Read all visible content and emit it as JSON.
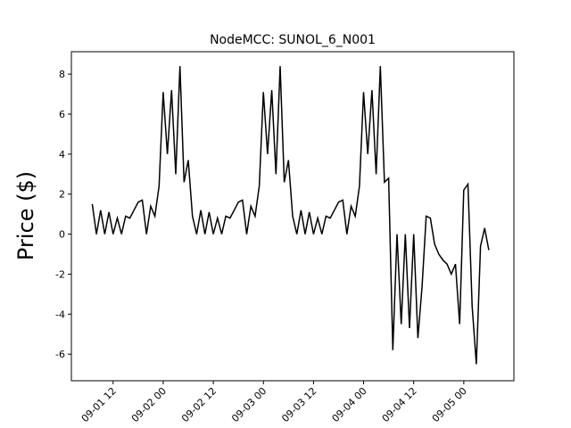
{
  "chart_data": {
    "type": "line",
    "title": "NodeMCC: SUNOL_6_N001",
    "y_label": "Price ($)",
    "x": [
      "09-01 07",
      "09-01 08",
      "09-01 09",
      "09-01 10",
      "09-01 11",
      "09-01 12",
      "09-01 13",
      "09-01 14",
      "09-01 15",
      "09-01 16",
      "09-01 17",
      "09-01 18",
      "09-01 19",
      "09-01 20",
      "09-01 21",
      "09-01 22",
      "09-01 23",
      "09-02 00",
      "09-02 01",
      "09-02 02",
      "09-02 03",
      "09-02 04",
      "09-02 05",
      "09-02 06",
      "09-02 07",
      "09-02 08",
      "09-02 09",
      "09-02 10",
      "09-02 11",
      "09-02 12",
      "09-02 13",
      "09-02 14",
      "09-02 15",
      "09-02 16",
      "09-02 17",
      "09-02 18",
      "09-02 19",
      "09-02 20",
      "09-02 21",
      "09-02 22",
      "09-02 23",
      "09-03 00",
      "09-03 01",
      "09-03 02",
      "09-03 03",
      "09-03 04",
      "09-03 05",
      "09-03 06",
      "09-03 07",
      "09-03 08",
      "09-03 09",
      "09-03 10",
      "09-03 11",
      "09-03 12",
      "09-03 13",
      "09-03 14",
      "09-03 15",
      "09-03 16",
      "09-03 17",
      "09-03 18",
      "09-03 19",
      "09-03 20",
      "09-03 21",
      "09-03 22",
      "09-03 23",
      "09-04 00",
      "09-04 01",
      "09-04 02",
      "09-04 03",
      "09-04 04",
      "09-04 05",
      "09-04 06",
      "09-04 07",
      "09-04 08",
      "09-04 09",
      "09-04 10",
      "09-04 11",
      "09-04 12",
      "09-04 13",
      "09-04 14",
      "09-04 15",
      "09-04 16",
      "09-04 17",
      "09-04 18",
      "09-04 19",
      "09-04 20",
      "09-04 21",
      "09-04 22",
      "09-04 23",
      "09-05 00",
      "09-05 01",
      "09-05 02",
      "09-05 03",
      "09-05 04",
      "09-05 05",
      "09-05 06"
    ],
    "series": [
      {
        "color": "#000000",
        "values": [
          1.5,
          0,
          1.2,
          0,
          1.1,
          0,
          0.8,
          0,
          0.9,
          0.8,
          1.2,
          1.6,
          1.7,
          0,
          1.4,
          0.9,
          2.4,
          7.1,
          4.0,
          7.2,
          3.0,
          8.4,
          2.6,
          3.7,
          0.9,
          0,
          1.2,
          0,
          1.1,
          0,
          0.8,
          0,
          0.9,
          0.8,
          1.2,
          1.6,
          1.7,
          0,
          1.4,
          0.9,
          2.4,
          7.1,
          4.0,
          7.2,
          3.0,
          8.4,
          2.6,
          3.7,
          0.9,
          0,
          1.2,
          0,
          1.1,
          0,
          0.8,
          0,
          0.9,
          0.8,
          1.2,
          1.6,
          1.7,
          0,
          1.4,
          0.9,
          2.4,
          7.1,
          4.0,
          7.2,
          3.0,
          8.4,
          2.6,
          2.8,
          -5.8,
          0,
          -4.5,
          0,
          -4.7,
          0,
          -5.2,
          -2.6,
          0.9,
          0.8,
          -0.5,
          -1.0,
          -1.3,
          -1.5,
          -2.0,
          -1.5,
          -4.5,
          2.2,
          2.5,
          -3.6,
          -6.5,
          -0.6,
          0.3,
          -0.8
        ]
      }
    ],
    "xlim": [
      "09-01 02",
      "09-05 12"
    ],
    "ylim": [
      -7.33,
      9.12
    ],
    "xticks": [
      "09-01 12",
      "09-02 00",
      "09-02 12",
      "09-03 00",
      "09-03 12",
      "09-04 00",
      "09-04 12",
      "09-05 00"
    ],
    "yticks": [
      -6,
      -4,
      -2,
      0,
      2,
      4,
      6,
      8
    ]
  }
}
